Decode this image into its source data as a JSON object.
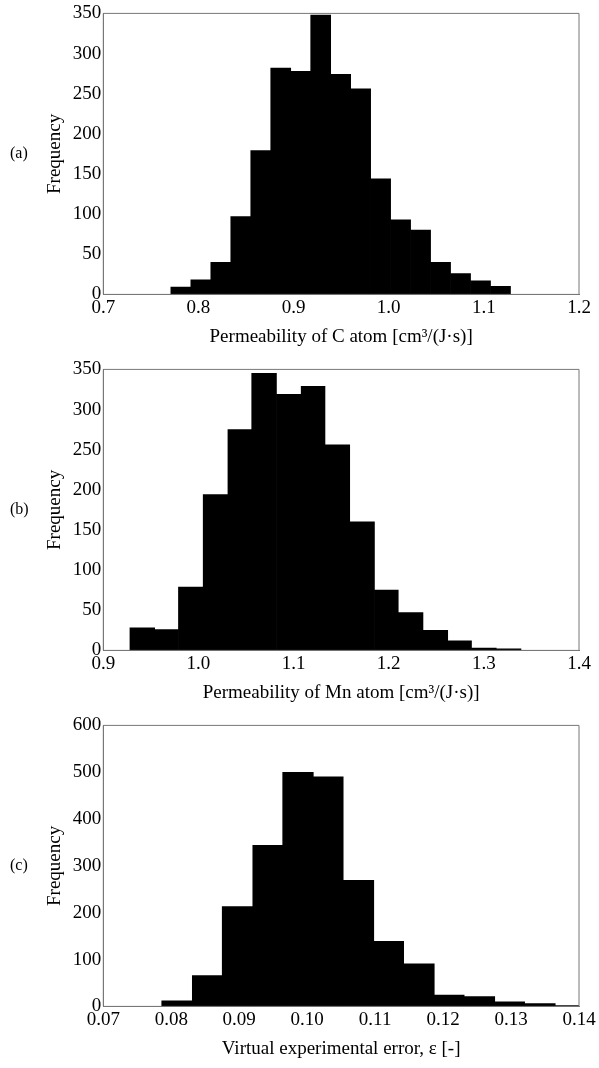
{
  "chart_data": [
    {
      "type": "histogram",
      "annotations": [
        "(a)"
      ],
      "xlabel": "Permeability of C atom [cm³/(J·s)]",
      "ylabel": "Frequency",
      "color": "#000000",
      "grid": false,
      "bins": [
        0.771,
        0.792,
        0.813,
        0.834,
        0.855,
        0.876,
        0.897,
        0.918,
        0.939,
        0.96,
        0.981,
        1.002,
        1.023,
        1.044,
        1.065,
        1.086,
        1.107,
        1.128
      ],
      "values": [
        9,
        18,
        40,
        97,
        179,
        282,
        278,
        348,
        274,
        256,
        144,
        93,
        80,
        40,
        26,
        17,
        10
      ],
      "xlim": [
        0.7,
        1.2
      ],
      "xticks": [
        {
          "value": 0.7,
          "label": "0.7"
        },
        {
          "value": 0.8,
          "label": "0.8"
        },
        {
          "value": 0.9,
          "label": "0.9"
        },
        {
          "value": 1.0,
          "label": "1.0"
        },
        {
          "value": 1.1,
          "label": "1.1"
        },
        {
          "value": 1.2,
          "label": "1.2"
        }
      ],
      "ylim": [
        0,
        350
      ],
      "yticks": [
        0,
        50,
        100,
        150,
        200,
        250,
        300,
        350
      ]
    },
    {
      "type": "histogram",
      "annotations": [
        "(b)"
      ],
      "xlabel": "Permeability of Mn atom [cm³/(J·s)]",
      "ylabel": "Frequency",
      "color": "#000000",
      "grid": false,
      "bins": [
        0.928,
        0.954,
        0.979,
        1.005,
        1.031,
        1.056,
        1.082,
        1.108,
        1.133,
        1.159,
        1.185,
        1.21,
        1.236,
        1.262,
        1.287,
        1.313,
        1.339
      ],
      "values": [
        28,
        26,
        79,
        194,
        275,
        345,
        319,
        329,
        256,
        160,
        75,
        47,
        25,
        12,
        3,
        2
      ],
      "xlim": [
        0.9,
        1.4
      ],
      "xticks": [
        {
          "value": 0.9,
          "label": "0.9"
        },
        {
          "value": 1.0,
          "label": "1.0"
        },
        {
          "value": 1.1,
          "label": "1.1"
        },
        {
          "value": 1.2,
          "label": "1.2"
        },
        {
          "value": 1.3,
          "label": "1.3"
        },
        {
          "value": 1.4,
          "label": "1.4"
        }
      ],
      "ylim": [
        0,
        350
      ],
      "yticks": [
        0,
        50,
        100,
        150,
        200,
        250,
        300,
        350
      ]
    },
    {
      "type": "histogram",
      "annotations": [
        "(c)"
      ],
      "xlabel": "Virtual experimental error, ε [-]",
      "ylabel": "Frequency",
      "color": "#000000",
      "grid": false,
      "bins": [
        0.0786,
        0.0831,
        0.0875,
        0.092,
        0.0964,
        0.1009,
        0.1053,
        0.1098,
        0.1142,
        0.1187,
        0.1231,
        0.1276,
        0.132,
        0.1365,
        0.14
      ],
      "values": [
        12,
        66,
        213,
        344,
        500,
        490,
        269,
        139,
        91,
        24,
        21,
        10,
        6,
        2
      ],
      "xlim": [
        0.07,
        0.14
      ],
      "xticks": [
        {
          "value": 0.07,
          "label": "0.07"
        },
        {
          "value": 0.08,
          "label": "0.08"
        },
        {
          "value": 0.09,
          "label": "0.09"
        },
        {
          "value": 0.1,
          "label": "0.10"
        },
        {
          "value": 0.11,
          "label": "0.11"
        },
        {
          "value": 0.12,
          "label": "0.12"
        },
        {
          "value": 0.13,
          "label": "0.13"
        },
        {
          "value": 0.14,
          "label": "0.14"
        }
      ],
      "ylim": [
        0,
        600
      ],
      "yticks": [
        0,
        100,
        200,
        300,
        400,
        500,
        600
      ]
    }
  ]
}
